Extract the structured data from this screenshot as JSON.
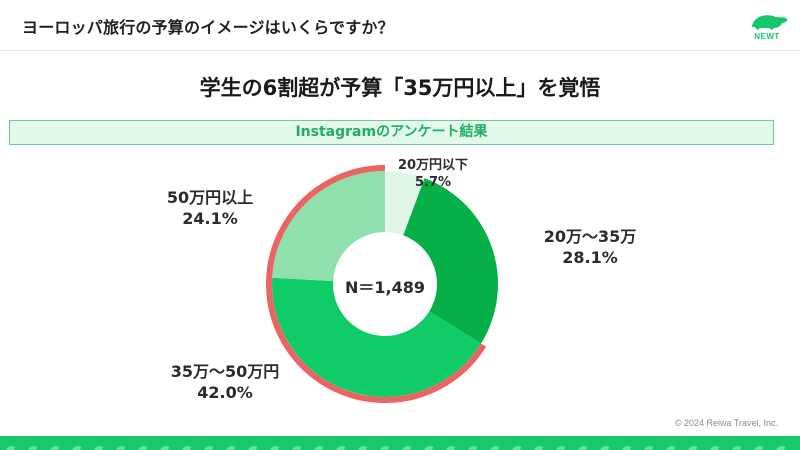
{
  "header": {
    "question": "ヨーロッパ旅行の予算のイメージはいくらですか？",
    "logo_text": "NEWT",
    "logo_icon": "turtle-icon"
  },
  "headline": "学生の6割超が予算「35万円以上」を覚悟",
  "banner": "Instagramのアンケート結果",
  "chart_data": {
    "type": "pie",
    "variant": "donut",
    "title": "学生の6割超が予算「35万円以上」を覚悟",
    "subtitle": "Instagramのアンケート結果",
    "center_label": "N＝1,489",
    "categories": [
      "20万円以下",
      "20万～35万",
      "35万～50万円",
      "50万円以上"
    ],
    "values": [
      5.7,
      28.1,
      42.0,
      24.1
    ],
    "value_labels": [
      "5.7%",
      "28.1%",
      "42.0%",
      "24.1%"
    ],
    "colors": [
      "#dff6e7",
      "#06b047",
      "#10cc68",
      "#8fe0ad"
    ],
    "start_angle": "top, clockwise",
    "highlight": {
      "color": "#ea6463",
      "covers": [
        "35万～50万円",
        "50万円以上"
      ],
      "total": 66.1
    },
    "n": 1489
  },
  "labels": {
    "seg1": {
      "name": "20万円以下",
      "value": "5.7%"
    },
    "seg2": {
      "name": "20万～35万",
      "value": "28.1%"
    },
    "seg3": {
      "name": "35万～50万円",
      "value": "42.0%"
    },
    "seg4": {
      "name": "50万円以上",
      "value": "24.1%"
    }
  },
  "footer": {
    "copyright": "© 2024 Reiwa Travel, Inc."
  }
}
